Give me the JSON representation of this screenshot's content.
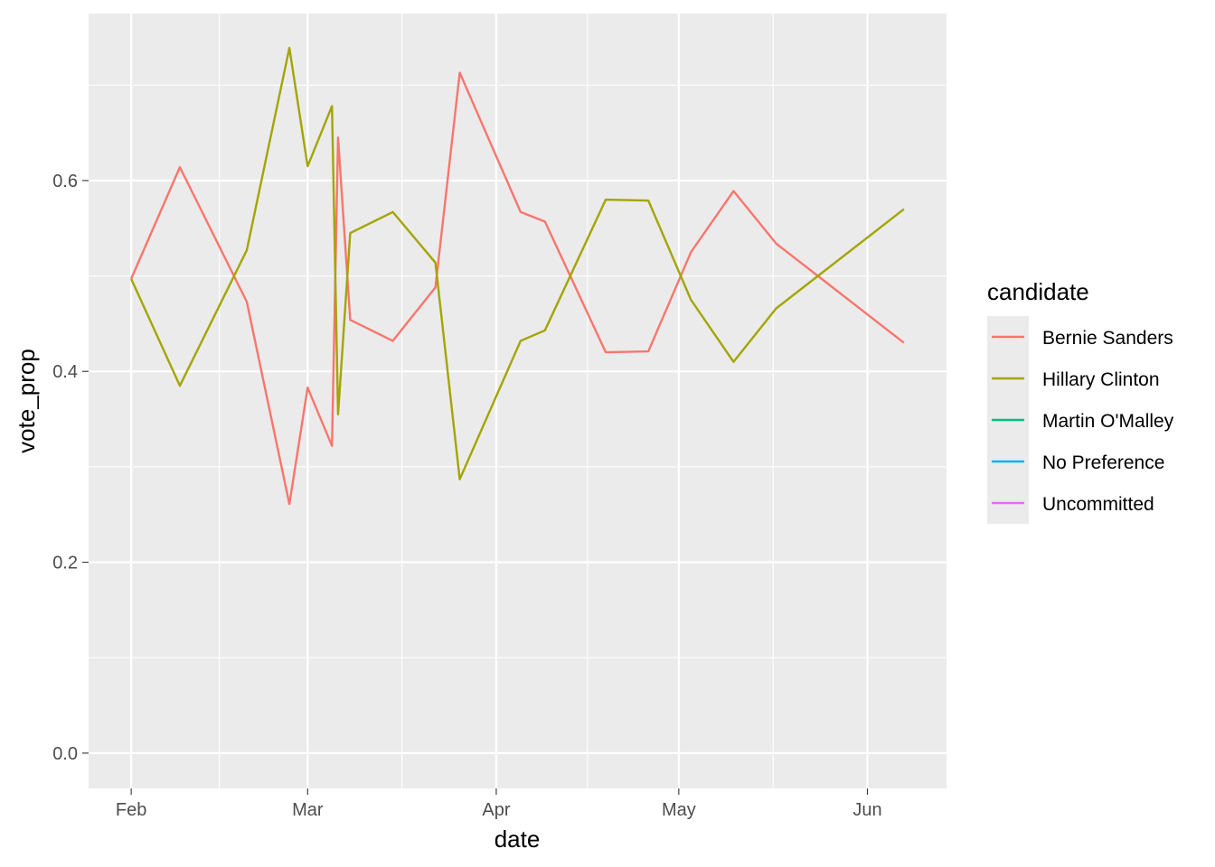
{
  "chart_data": {
    "type": "line",
    "xlabel": "date",
    "ylabel": "vote_prop",
    "x_ticks": [
      {
        "label": "Feb",
        "date": "2016-02-01"
      },
      {
        "label": "Mar",
        "date": "2016-03-01"
      },
      {
        "label": "Apr",
        "date": "2016-04-01"
      },
      {
        "label": "May",
        "date": "2016-05-01"
      },
      {
        "label": "Jun",
        "date": "2016-06-01"
      }
    ],
    "xlim": [
      "2016-01-25",
      "2016-06-14"
    ],
    "y_ticks": [
      {
        "label": "0.0",
        "value": 0.0
      },
      {
        "label": "0.2",
        "value": 0.2
      },
      {
        "label": "0.4",
        "value": 0.4
      },
      {
        "label": "0.6",
        "value": 0.6
      }
    ],
    "ylim": [
      -0.037,
      0.775
    ],
    "grid": true,
    "legend": {
      "title": "candidate",
      "placement": "right",
      "entries": [
        {
          "label": "Bernie Sanders",
          "color": "#F8766D"
        },
        {
          "label": "Hillary Clinton",
          "color": "#A3A500"
        },
        {
          "label": "Martin O'Malley",
          "color": "#00BF7D"
        },
        {
          "label": "No Preference",
          "color": "#00B0F6"
        },
        {
          "label": "Uncommitted",
          "color": "#E76BF3"
        }
      ]
    },
    "series": [
      {
        "name": "Bernie Sanders",
        "color": "#F8766D",
        "points": [
          {
            "x": "2016-02-01",
            "y": 0.497
          },
          {
            "x": "2016-02-09",
            "y": 0.614
          },
          {
            "x": "2016-02-20",
            "y": 0.473
          },
          {
            "x": "2016-02-27",
            "y": 0.261
          },
          {
            "x": "2016-03-01",
            "y": 0.383
          },
          {
            "x": "2016-03-05",
            "y": 0.322
          },
          {
            "x": "2016-03-06",
            "y": 0.645
          },
          {
            "x": "2016-03-08",
            "y": 0.454
          },
          {
            "x": "2016-03-15",
            "y": 0.432
          },
          {
            "x": "2016-03-22",
            "y": 0.488
          },
          {
            "x": "2016-03-26",
            "y": 0.713
          },
          {
            "x": "2016-04-05",
            "y": 0.567
          },
          {
            "x": "2016-04-09",
            "y": 0.557
          },
          {
            "x": "2016-04-19",
            "y": 0.42
          },
          {
            "x": "2016-04-26",
            "y": 0.421
          },
          {
            "x": "2016-05-03",
            "y": 0.525
          },
          {
            "x": "2016-05-10",
            "y": 0.589
          },
          {
            "x": "2016-05-17",
            "y": 0.534
          },
          {
            "x": "2016-06-07",
            "y": 0.43
          }
        ]
      },
      {
        "name": "Hillary Clinton",
        "color": "#A3A500",
        "points": [
          {
            "x": "2016-02-01",
            "y": 0.497
          },
          {
            "x": "2016-02-09",
            "y": 0.385
          },
          {
            "x": "2016-02-20",
            "y": 0.527
          },
          {
            "x": "2016-02-27",
            "y": 0.739
          },
          {
            "x": "2016-03-01",
            "y": 0.615
          },
          {
            "x": "2016-03-05",
            "y": 0.678
          },
          {
            "x": "2016-03-06",
            "y": 0.355
          },
          {
            "x": "2016-03-08",
            "y": 0.545
          },
          {
            "x": "2016-03-15",
            "y": 0.567
          },
          {
            "x": "2016-03-22",
            "y": 0.514
          },
          {
            "x": "2016-03-26",
            "y": 0.287
          },
          {
            "x": "2016-04-05",
            "y": 0.432
          },
          {
            "x": "2016-04-09",
            "y": 0.443
          },
          {
            "x": "2016-04-19",
            "y": 0.58
          },
          {
            "x": "2016-04-26",
            "y": 0.579
          },
          {
            "x": "2016-05-03",
            "y": 0.475
          },
          {
            "x": "2016-05-10",
            "y": 0.41
          },
          {
            "x": "2016-05-17",
            "y": 0.466
          },
          {
            "x": "2016-06-07",
            "y": 0.57
          }
        ]
      }
    ]
  }
}
